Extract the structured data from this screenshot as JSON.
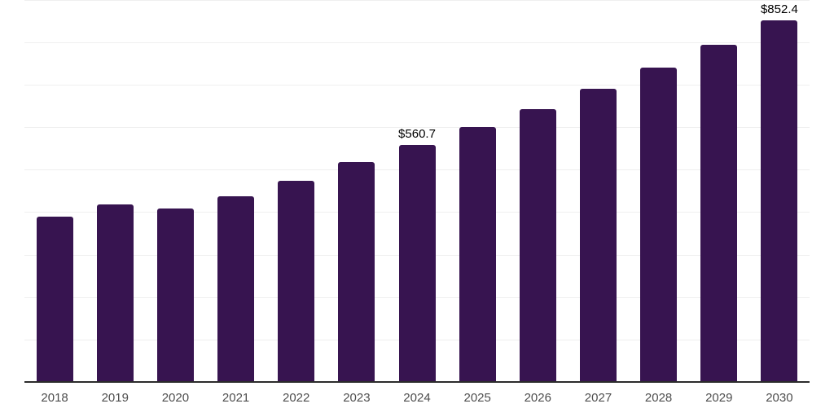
{
  "chart_data": {
    "type": "bar",
    "title": "",
    "xlabel": "",
    "ylabel": "",
    "categories": [
      "2018",
      "2019",
      "2020",
      "2021",
      "2022",
      "2023",
      "2024",
      "2025",
      "2026",
      "2027",
      "2028",
      "2029",
      "2030"
    ],
    "values": [
      391.0,
      419.6,
      410.0,
      438.3,
      476.3,
      519.3,
      560.7,
      601.2,
      644.7,
      691.3,
      741.3,
      794.9,
      852.4
    ],
    "data_labels": {
      "2024": "$560.7",
      "2030": "$852.4"
    },
    "ylim": [
      0,
      901
    ],
    "grid_step": 100,
    "grid": "horizontal",
    "y_axis_tick_labels_visible": false,
    "legend": "none",
    "colors": {
      "bar": "#371450",
      "axis_line": "#2b2b2b",
      "gridline": "#efefef",
      "tick_label": "#4d4d4d",
      "data_label": "#000000",
      "background": "#ffffff"
    }
  }
}
